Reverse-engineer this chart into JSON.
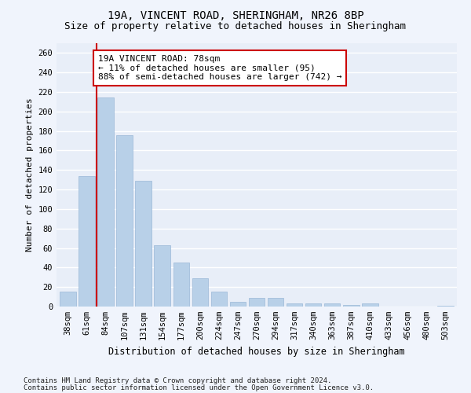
{
  "title1": "19A, VINCENT ROAD, SHERINGHAM, NR26 8BP",
  "title2": "Size of property relative to detached houses in Sheringham",
  "xlabel": "Distribution of detached houses by size in Sheringham",
  "ylabel": "Number of detached properties",
  "categories": [
    "38sqm",
    "61sqm",
    "84sqm",
    "107sqm",
    "131sqm",
    "154sqm",
    "177sqm",
    "200sqm",
    "224sqm",
    "247sqm",
    "270sqm",
    "294sqm",
    "317sqm",
    "340sqm",
    "363sqm",
    "387sqm",
    "410sqm",
    "433sqm",
    "456sqm",
    "480sqm",
    "503sqm"
  ],
  "values": [
    15,
    134,
    214,
    176,
    129,
    63,
    45,
    29,
    15,
    5,
    9,
    9,
    3,
    3,
    3,
    2,
    3,
    0,
    0,
    0,
    1
  ],
  "bar_color": "#b8d0e8",
  "bar_edge_color": "#9ab8d8",
  "background_color": "#e8eef8",
  "grid_color": "#ffffff",
  "fig_background": "#f0f4fc",
  "vline_color": "#cc0000",
  "vline_x": 1.5,
  "annotation_text": "19A VINCENT ROAD: 78sqm\n← 11% of detached houses are smaller (95)\n88% of semi-detached houses are larger (742) →",
  "annotation_box_color": "#ffffff",
  "annotation_box_edge": "#cc0000",
  "ylim": [
    0,
    270
  ],
  "yticks": [
    0,
    20,
    40,
    60,
    80,
    100,
    120,
    140,
    160,
    180,
    200,
    220,
    240,
    260
  ],
  "footer1": "Contains HM Land Registry data © Crown copyright and database right 2024.",
  "footer2": "Contains public sector information licensed under the Open Government Licence v3.0.",
  "title1_fontsize": 10,
  "title2_fontsize": 9,
  "xlabel_fontsize": 8.5,
  "ylabel_fontsize": 8,
  "tick_fontsize": 7.5,
  "annotation_fontsize": 8,
  "footer_fontsize": 6.5
}
